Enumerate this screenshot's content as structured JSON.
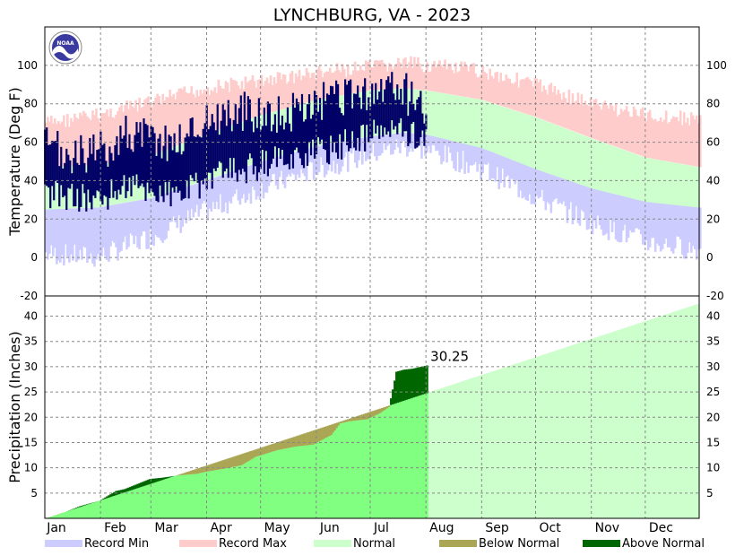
{
  "chart_data": [
    {
      "type": "area",
      "panel": "temperature",
      "title": "LYNCHBURG, VA - 2023",
      "ylabel": "Temperature (Deg F)",
      "ylim": [
        -20,
        120
      ],
      "yticks": [
        -20,
        0,
        20,
        40,
        60,
        80,
        100
      ],
      "grid": true,
      "normal_high_curve": {
        "x_day": [
          1,
          30,
          60,
          90,
          121,
          152,
          182,
          200,
          213,
          244,
          274,
          305,
          335,
          365
        ],
        "y": [
          47,
          48,
          53,
          64,
          74,
          82,
          87,
          88,
          87,
          82,
          73,
          62,
          52,
          47
        ]
      },
      "normal_low_curve": {
        "x_day": [
          1,
          30,
          60,
          90,
          121,
          152,
          182,
          200,
          213,
          244,
          274,
          305,
          335,
          365
        ],
        "y": [
          25,
          26,
          31,
          40,
          50,
          58,
          63,
          65,
          64,
          57,
          46,
          36,
          29,
          26
        ]
      },
      "record_max_curve": {
        "x_day": [
          1,
          30,
          60,
          90,
          121,
          152,
          182,
          200,
          213,
          244,
          274,
          305,
          335,
          365
        ],
        "y": [
          74,
          78,
          85,
          92,
          96,
          100,
          103,
          105,
          104,
          101,
          94,
          84,
          78,
          76
        ]
      },
      "record_min_curve": {
        "x_day": [
          1,
          30,
          60,
          90,
          121,
          152,
          182,
          200,
          213,
          244,
          274,
          305,
          335,
          365
        ],
        "y": [
          -4,
          -6,
          5,
          18,
          30,
          40,
          48,
          52,
          50,
          40,
          25,
          12,
          2,
          -2
        ]
      },
      "observed_highs_monthly": {
        "x_day": [
          1,
          15,
          32,
          46,
          60,
          74,
          91,
          105,
          121,
          135,
          152,
          166,
          182,
          196,
          213
        ],
        "y": [
          58,
          52,
          55,
          65,
          62,
          60,
          72,
          75,
          76,
          74,
          80,
          82,
          85,
          88,
          80
        ]
      },
      "observed_lows_monthly": {
        "x_day": [
          1,
          15,
          32,
          46,
          60,
          74,
          91,
          105,
          121,
          135,
          152,
          166,
          182,
          196,
          213
        ],
        "y": [
          33,
          32,
          30,
          38,
          35,
          32,
          40,
          45,
          48,
          52,
          55,
          58,
          64,
          67,
          63
        ]
      }
    },
    {
      "type": "area",
      "panel": "precipitation",
      "ylabel": "Precipitation (Inches)",
      "ylim": [
        0,
        44
      ],
      "yticks": [
        5,
        10,
        15,
        20,
        25,
        30,
        35,
        40
      ],
      "grid": true,
      "annotation": "30.25",
      "normal_cumulative": {
        "x_day": [
          1,
          365
        ],
        "y": [
          0,
          42.5
        ]
      },
      "observed_cumulative": {
        "x_day": [
          1,
          10,
          20,
          31,
          40,
          45,
          59,
          65,
          75,
          85,
          90,
          100,
          110,
          118,
          121,
          130,
          140,
          150,
          160,
          165,
          170,
          180,
          187,
          192,
          196,
          200,
          205,
          213
        ],
        "y": [
          0,
          1.0,
          2.4,
          3.5,
          5.4,
          5.8,
          7.8,
          8.0,
          8.5,
          8.8,
          9.2,
          9.8,
          10.5,
          12.2,
          12.5,
          13.5,
          14.2,
          14.6,
          16.5,
          18.8,
          19.2,
          19.6,
          20.8,
          22.0,
          29.0,
          29.4,
          29.6,
          30.25
        ]
      }
    }
  ],
  "months": [
    "Jan",
    "Feb",
    "Mar",
    "Apr",
    "May",
    "Jun",
    "Jul",
    "Aug",
    "Sep",
    "Oct",
    "Nov",
    "Dec"
  ],
  "legend": [
    {
      "label": "Record Min",
      "color": "#ccccff"
    },
    {
      "label": "Record Max",
      "color": "#ffcccc"
    },
    {
      "label": "Normal",
      "color": "#ccffcc"
    },
    {
      "label": "Below Normal",
      "color": "#aaa655"
    },
    {
      "label": "Above Normal",
      "color": "#006600"
    }
  ],
  "colors": {
    "observed_temp": "#000066",
    "observed_precip_fill": "#80ff80",
    "grid": "#888888",
    "noaa_logo": "#3a3aa0"
  },
  "logo": {
    "text": "NOAA"
  }
}
